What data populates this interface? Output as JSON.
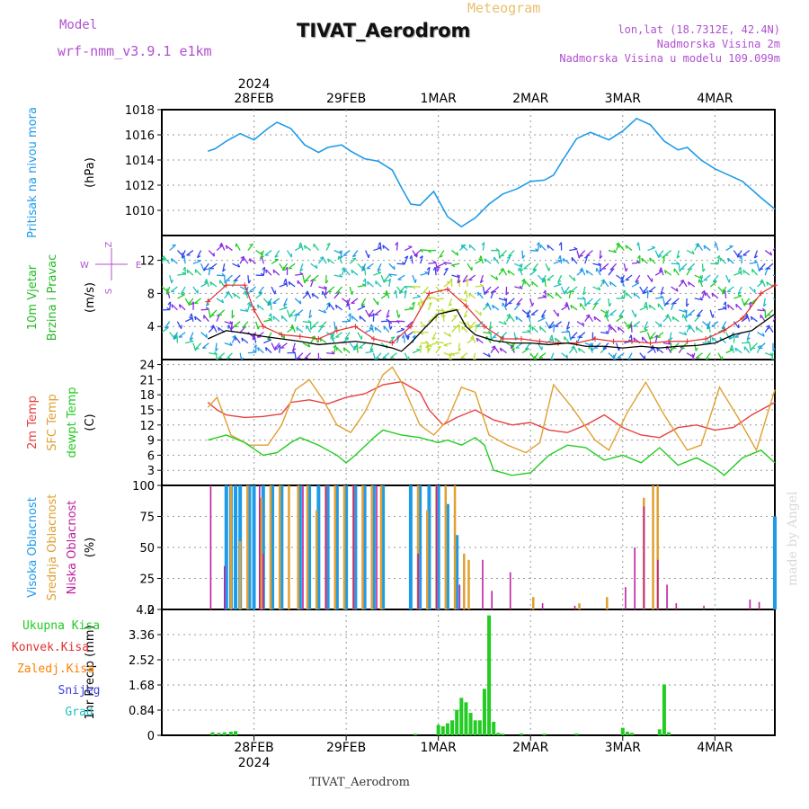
{
  "header": {
    "model_label": "Model",
    "model_value": "wrf-nmm_v3.9.1  e1km",
    "meteogram_label": "Meteogram",
    "station_title": "TIVAT_Aerodrom",
    "lonlat": "lon,lat (18.7312E, 42.4N)",
    "elevation": "Nadmorska Visina 2m",
    "model_elevation": "Nadmorska Visina u modelu 109.099m"
  },
  "footer": {
    "station": "TIVAT_Aerodrom",
    "watermark": "made by Angel"
  },
  "colors": {
    "pressure": "#1e9be8",
    "wind_speed": "#000000",
    "gust": "#e03030",
    "temp2m": "#e84040",
    "sfc_temp": "#e0a030",
    "dewpt": "#22cc22",
    "high_cloud": "#1e9be8",
    "mid_cloud": "#e0a030",
    "low_cloud": "#c020a0",
    "precip_total": "#22cc22",
    "precip_conv": "#e03030",
    "precip_strat": "#ff8000",
    "snow": "#4040e0",
    "graupel": "#20c0c0"
  },
  "chart_data": [
    {
      "type": "line",
      "panel": "pressure",
      "xlabels_top": [
        "28FEB",
        "29FEB",
        "1MAR",
        "2MAR",
        "3MAR",
        "4MAR"
      ],
      "year_top": "2024",
      "ylabel": "(hPa)",
      "side_labels": [
        "Pritisak na nivou mora"
      ],
      "ylim": [
        1008,
        1018
      ],
      "yticks": [
        "1010",
        "1012",
        "1014",
        "1016",
        "1018"
      ],
      "x_days": [
        0,
        0.08,
        0.2,
        0.35,
        0.5,
        0.65,
        0.75,
        0.9,
        1.05,
        1.2,
        1.3,
        1.45,
        1.55,
        1.7,
        1.85,
        2.0,
        2.1,
        2.2,
        2.3,
        2.45,
        2.6,
        2.75,
        2.9,
        3.05,
        3.2,
        3.35,
        3.5,
        3.65,
        3.75,
        3.85,
        4.0,
        4.15,
        4.35,
        4.5,
        4.65,
        4.8,
        4.95,
        5.1,
        5.2,
        5.35,
        5.5,
        5.65,
        5.8,
        6.0,
        6.15
      ],
      "values": [
        1014.7,
        1014.9,
        1015.5,
        1016.1,
        1015.6,
        1016.5,
        1017.0,
        1016.5,
        1015.2,
        1014.6,
        1015.0,
        1015.2,
        1014.7,
        1014.1,
        1013.9,
        1013.2,
        1011.8,
        1010.5,
        1010.4,
        1011.5,
        1009.5,
        1008.7,
        1009.4,
        1010.5,
        1011.3,
        1011.7,
        1012.3,
        1012.4,
        1012.8,
        1014.0,
        1015.7,
        1016.2,
        1015.6,
        1016.3,
        1017.3,
        1016.8,
        1015.5,
        1014.8,
        1015.0,
        1014.0,
        1013.3,
        1012.8,
        1012.3,
        1011.0,
        1010.1
      ]
    },
    {
      "type": "line",
      "panel": "wind",
      "ylabel": "(m/s)",
      "side_labels": [
        "10m Vjetar",
        "Brzina i Pravac"
      ],
      "compass_labels": [
        "Z",
        "W",
        "E",
        "S"
      ],
      "ylim": [
        0,
        15
      ],
      "yticks": [
        "4",
        "8",
        "12"
      ],
      "series": [
        {
          "role": "speed",
          "x_days": [
            0,
            0.2,
            0.4,
            0.6,
            0.8,
            1.0,
            1.2,
            1.4,
            1.6,
            1.8,
            2.0,
            2.1,
            2.2,
            2.35,
            2.5,
            2.7,
            2.8,
            2.9,
            3.1,
            3.3,
            3.5,
            3.7,
            3.9,
            4.1,
            4.3,
            4.5,
            4.7,
            4.9,
            5.1,
            5.3,
            5.5,
            5.7,
            5.9,
            6.15
          ],
          "values": [
            2.5,
            3.5,
            3.2,
            2.8,
            2.5,
            2.2,
            1.8,
            2.0,
            2.2,
            1.9,
            1.4,
            1.0,
            2.0,
            3.8,
            5.5,
            6.0,
            4.0,
            3.0,
            2.3,
            2.0,
            2.0,
            1.8,
            2.0,
            1.6,
            1.6,
            1.4,
            1.6,
            1.4,
            1.6,
            1.7,
            2.0,
            3.0,
            3.5,
            5.5
          ]
        },
        {
          "role": "gust",
          "x_days": [
            0,
            0.2,
            0.4,
            0.5,
            0.6,
            0.8,
            1.0,
            1.2,
            1.4,
            1.6,
            1.8,
            2.0,
            2.2,
            2.4,
            2.6,
            2.8,
            3.0,
            3.2,
            3.4,
            3.6,
            3.8,
            4.0,
            4.2,
            4.4,
            4.6,
            4.8,
            5.0,
            5.2,
            5.4,
            5.6,
            5.8,
            6.0,
            6.15
          ],
          "values": [
            7,
            9,
            9,
            6,
            4,
            3,
            2.8,
            2.5,
            3.5,
            4.0,
            2.5,
            2.0,
            4.0,
            8.0,
            8.5,
            6.5,
            4.0,
            2.5,
            2.5,
            2.2,
            2.0,
            2.0,
            2.5,
            2.2,
            2.2,
            2.0,
            2.2,
            2.2,
            2.5,
            3.5,
            5.0,
            8.0,
            9.0
          ]
        }
      ]
    },
    {
      "type": "line",
      "panel": "temperature",
      "ylabel": "(C)",
      "side_labels": [
        "2m Temp",
        "SFC Temp",
        "dewpt Temp"
      ],
      "ylim": [
        0,
        25
      ],
      "yticks": [
        "0",
        "3",
        "6",
        "9",
        "12",
        "15",
        "18",
        "21",
        "24"
      ],
      "series": [
        {
          "name": "2m Temp",
          "x_days": [
            0,
            0.1,
            0.2,
            0.4,
            0.6,
            0.8,
            0.9,
            1.1,
            1.3,
            1.5,
            1.7,
            1.9,
            2.1,
            2.3,
            2.4,
            2.55,
            2.7,
            2.9,
            3.1,
            3.3,
            3.5,
            3.7,
            3.9,
            4.1,
            4.3,
            4.5,
            4.7,
            4.9,
            5.1,
            5.3,
            5.5,
            5.7,
            5.9,
            6.15
          ],
          "values": [
            16.5,
            15.0,
            14.0,
            13.5,
            13.7,
            14.2,
            16.5,
            17.0,
            16.2,
            17.5,
            18.2,
            20.0,
            20.6,
            18.5,
            15.0,
            12.0,
            13.5,
            15.0,
            13.0,
            12.0,
            12.5,
            11.0,
            10.5,
            12.0,
            14.0,
            11.5,
            10.0,
            9.5,
            11.5,
            12.0,
            11.0,
            11.5,
            14.0,
            16.5
          ]
        },
        {
          "name": "SFC Temp",
          "x_days": [
            0,
            0.1,
            0.25,
            0.45,
            0.65,
            0.8,
            0.95,
            1.1,
            1.25,
            1.4,
            1.55,
            1.7,
            1.9,
            2.0,
            2.1,
            2.3,
            2.45,
            2.6,
            2.75,
            2.9,
            3.05,
            3.25,
            3.45,
            3.6,
            3.75,
            3.95,
            4.2,
            4.35,
            4.55,
            4.75,
            4.95,
            5.2,
            5.35,
            5.55,
            5.75,
            5.95,
            6.15
          ],
          "values": [
            15.5,
            17.5,
            10.0,
            8.0,
            8.0,
            12.0,
            19.0,
            21.0,
            17.0,
            12.0,
            10.5,
            14.5,
            22.0,
            23.5,
            20.5,
            12.0,
            10.0,
            13.0,
            19.5,
            18.5,
            10.0,
            8.0,
            6.5,
            8.5,
            20.0,
            15.5,
            9.0,
            7.0,
            14.5,
            20.5,
            14.0,
            7.0,
            8.0,
            19.5,
            13.5,
            7.0,
            19.0
          ]
        },
        {
          "name": "dewpt Temp",
          "x_days": [
            0,
            0.2,
            0.4,
            0.6,
            0.75,
            0.9,
            1.0,
            1.2,
            1.4,
            1.5,
            1.6,
            1.8,
            1.9,
            2.1,
            2.3,
            2.5,
            2.6,
            2.75,
            2.9,
            3.0,
            3.1,
            3.3,
            3.5,
            3.7,
            3.9,
            4.1,
            4.3,
            4.5,
            4.7,
            4.9,
            5.1,
            5.3,
            5.5,
            5.6,
            5.8,
            6.0,
            6.15
          ],
          "values": [
            9.0,
            10.0,
            8.5,
            6.0,
            6.5,
            8.5,
            9.5,
            8.0,
            6.0,
            4.5,
            6.0,
            9.5,
            11.0,
            10.0,
            9.5,
            8.5,
            9.0,
            8.0,
            9.5,
            8.0,
            3.0,
            2.0,
            2.5,
            6.0,
            8.0,
            7.5,
            5.0,
            6.0,
            4.5,
            7.5,
            4.0,
            5.5,
            3.5,
            2.0,
            5.5,
            7.0,
            4.5
          ]
        }
      ]
    },
    {
      "type": "bar",
      "panel": "cloud",
      "ylabel": "(%)",
      "side_labels": [
        "Visoka Oblacnost",
        "Srednja Oblacnost",
        "Niska Oblacnost"
      ],
      "ylim": [
        0,
        100
      ],
      "yticks": [
        "0",
        "25",
        "50",
        "75",
        "100"
      ],
      "series": [
        {
          "name": "Visoka Oblacnost",
          "x_days": [
            0.2,
            0.25,
            0.3,
            0.35,
            0.45,
            0.5,
            0.6,
            0.7,
            0.8,
            1.0,
            1.1,
            1.2,
            1.3,
            1.4,
            1.5,
            1.6,
            1.7,
            1.8,
            1.9,
            2.2,
            2.3,
            2.4,
            2.5,
            2.6,
            2.7,
            6.15
          ],
          "values": [
            100,
            100,
            100,
            100,
            100,
            100,
            100,
            100,
            100,
            100,
            100,
            100,
            100,
            100,
            100,
            100,
            100,
            100,
            100,
            100,
            100,
            100,
            100,
            85,
            60,
            75
          ]
        },
        {
          "name": "Srednja Oblacnost",
          "x_days": [
            0.22,
            0.32,
            0.4,
            0.55,
            0.65,
            0.75,
            0.85,
            0.95,
            1.05,
            1.15,
            1.25,
            1.35,
            1.45,
            1.55,
            1.65,
            1.75,
            1.85,
            2.25,
            2.35,
            2.45,
            2.55,
            2.65,
            2.75,
            2.8,
            3.5,
            4.0,
            4.3,
            4.7,
            4.8,
            4.85
          ],
          "values": [
            100,
            55,
            100,
            90,
            100,
            100,
            100,
            100,
            100,
            80,
            100,
            100,
            100,
            100,
            100,
            100,
            100,
            100,
            80,
            100,
            100,
            100,
            45,
            40,
            10,
            5,
            10,
            90,
            100,
            100
          ]
        },
        {
          "name": "Niska Oblacnost",
          "x_days": [
            0.05,
            0.2,
            0.58,
            0.62,
            1.05,
            1.3,
            1.6,
            1.85,
            2.3,
            2.5,
            2.75,
            3.0,
            3.1,
            3.3,
            3.65,
            4.0,
            4.55,
            4.65,
            4.75,
            4.9,
            5.0,
            5.1,
            5.4,
            5.9,
            6.0
          ],
          "values": [
            100,
            35,
            100,
            45,
            100,
            100,
            100,
            100,
            45,
            100,
            20,
            40,
            15,
            30,
            5,
            3,
            18,
            50,
            83,
            40,
            20,
            5,
            3,
            8,
            6
          ]
        }
      ]
    },
    {
      "type": "bar",
      "panel": "precip",
      "ylabel": "1hr Precip (mm)",
      "side_labels": [
        "Ukupna Kisa",
        "Konvek.Kisa",
        "Zaledj.Kisa",
        "Snijeg",
        "Grad"
      ],
      "ylim": [
        0,
        4.2
      ],
      "yticks": [
        "0",
        "0.84",
        "1.68",
        "2.52",
        "3.36",
        "4.2"
      ],
      "xlabels_bottom": [
        "28FEB",
        "29FEB",
        "1MAR",
        "2MAR",
        "3MAR",
        "4MAR"
      ],
      "year_bottom": "2024",
      "x_days": [
        0.05,
        0.12,
        0.18,
        0.25,
        0.3,
        2.25,
        2.5,
        2.55,
        2.6,
        2.65,
        2.7,
        2.75,
        2.8,
        2.85,
        2.9,
        2.95,
        3.0,
        3.05,
        3.1,
        3.15,
        3.2,
        3.4,
        3.65,
        4.0,
        4.5,
        4.55,
        4.6,
        4.9,
        4.95,
        5.0
      ],
      "values": [
        0.1,
        0.08,
        0.1,
        0.12,
        0.14,
        0.05,
        0.35,
        0.3,
        0.4,
        0.5,
        0.85,
        1.25,
        1.1,
        0.75,
        0.5,
        0.5,
        1.55,
        4.0,
        0.45,
        0.08,
        0.05,
        0.06,
        0.05,
        0.06,
        0.25,
        0.12,
        0.08,
        0.2,
        1.7,
        0.1
      ]
    }
  ]
}
